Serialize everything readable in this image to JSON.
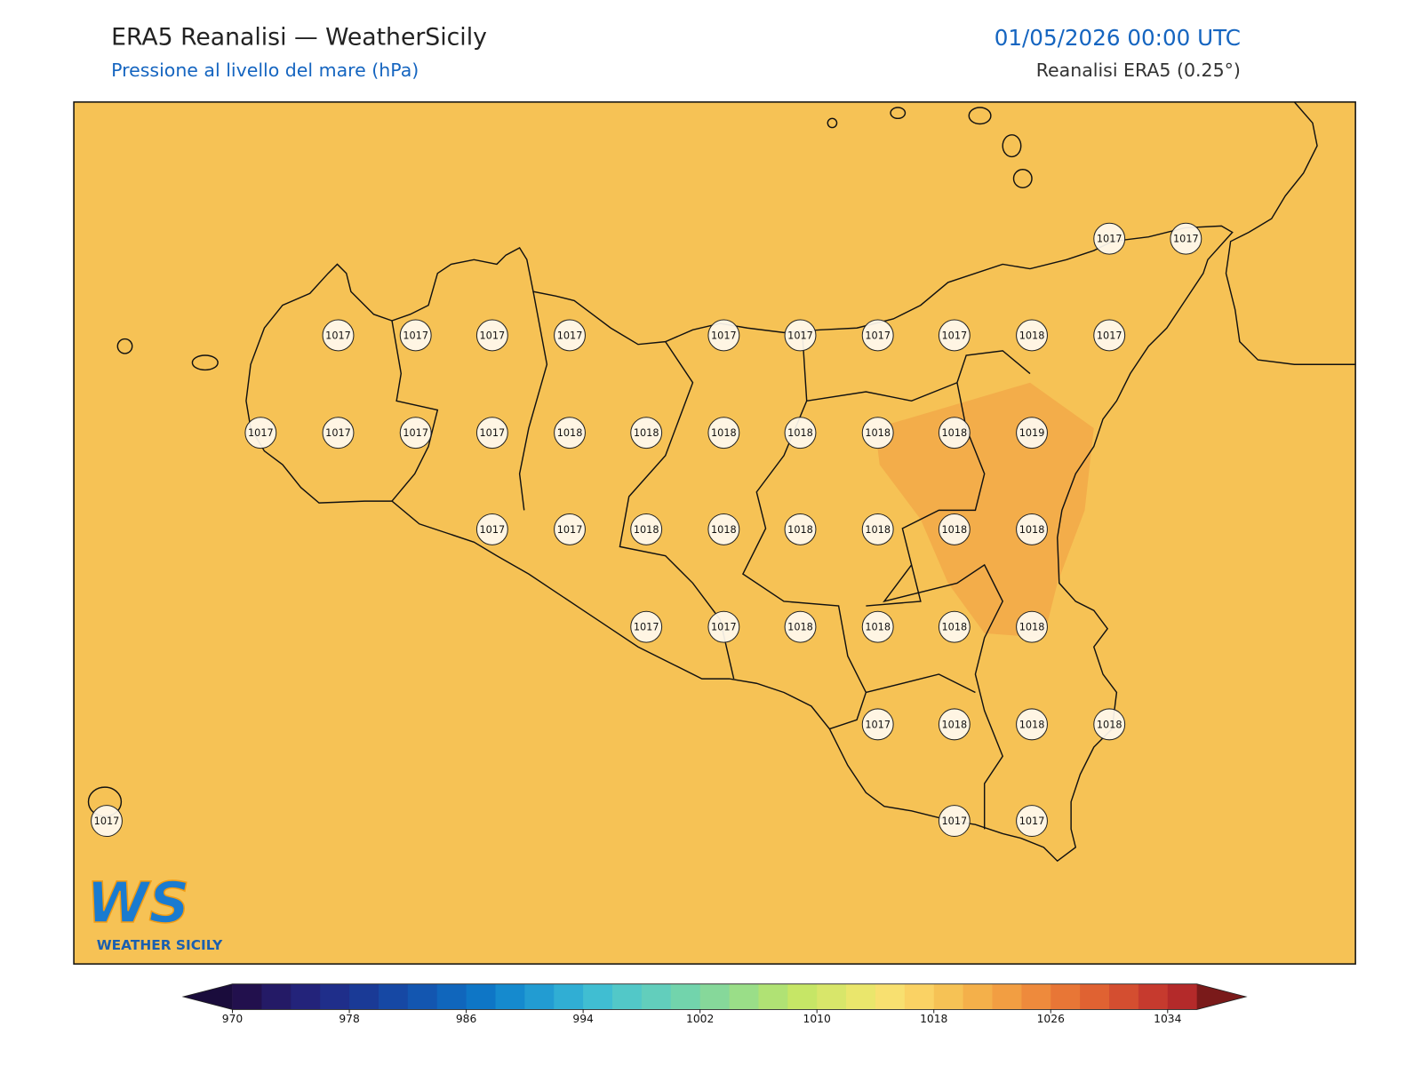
{
  "header": {
    "title": "ERA5 Reanalisi — WeatherSicily",
    "subtitle": "Pressione al livello del mare (hPa)",
    "datetime": "01/05/2026 00:00 UTC",
    "source": "Reanalisi ERA5 (0.25°)"
  },
  "stations": [
    1017,
    1017,
    1017,
    1017,
    1017,
    1017,
    1017,
    1017,
    1017,
    1017,
    1018,
    1017,
    1017,
    1017,
    1017,
    1017,
    1018,
    1018,
    1018,
    1018,
    1018,
    1018,
    1019,
    1017,
    1017,
    1018,
    1018,
    1018,
    1018,
    1018,
    1018,
    1017,
    1017,
    1018,
    1018,
    1018,
    1018,
    1017,
    1018,
    1018,
    1018,
    1017,
    1017,
    1017
  ],
  "colorbar": {
    "range": [
      970,
      1036
    ],
    "step": 2,
    "ticks": [
      970,
      978,
      986,
      994,
      1002,
      1010,
      1018,
      1026,
      1034
    ],
    "colors": [
      "#22104d",
      "#241a66",
      "#23237a",
      "#1f2e8a",
      "#1a3a96",
      "#1648a4",
      "#1356b0",
      "#1066bc",
      "#0e76c6",
      "#158ace",
      "#229cd2",
      "#30aed4",
      "#40bed2",
      "#52c8c8",
      "#62cebc",
      "#72d4ac",
      "#86d89a",
      "#9ade88",
      "#b0e274",
      "#c6e666",
      "#d8e66a",
      "#eae66c",
      "#f8e070",
      "#fad264",
      "#f6c255",
      "#f4b04a",
      "#f29e42",
      "#ee8a3c",
      "#e87636",
      "#e06232",
      "#d44e30",
      "#c63a2e",
      "#b42a2a"
    ],
    "under": "#1a0c3c",
    "over": "#7a1a1a"
  },
  "logo": {
    "mark": "WS",
    "text": "WEATHER SICILY"
  }
}
